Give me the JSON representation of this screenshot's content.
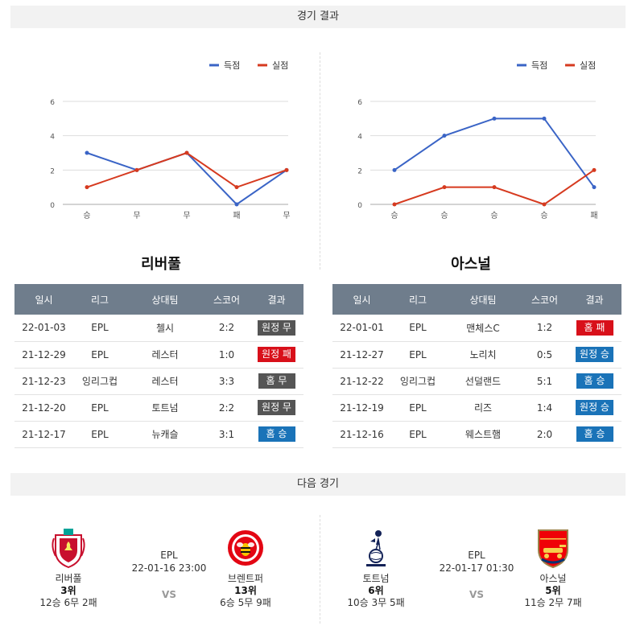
{
  "sections": {
    "results_title": "경기 결과",
    "next_title": "다음 경기"
  },
  "legend": {
    "scored": "득점",
    "conceded": "실점"
  },
  "colors": {
    "scored": "#3a64c6",
    "conceded": "#d63a1f",
    "win": "#1a73b8",
    "loss": "#d8101a",
    "draw": "#555555",
    "header": "#6f7d8c"
  },
  "chart_data": [
    {
      "type": "line",
      "categories": [
        "승",
        "무",
        "무",
        "패",
        "무"
      ],
      "series": [
        {
          "name": "득점",
          "values": [
            3,
            2,
            3,
            0,
            2
          ]
        },
        {
          "name": "실점",
          "values": [
            1,
            2,
            3,
            1,
            2
          ]
        }
      ],
      "yticks": [
        0,
        2,
        4,
        6
      ],
      "ylim": [
        0,
        6
      ],
      "grid": true,
      "legend": "top-right"
    },
    {
      "type": "line",
      "categories": [
        "승",
        "승",
        "승",
        "승",
        "패"
      ],
      "series": [
        {
          "name": "득점",
          "values": [
            2,
            4,
            5,
            5,
            1
          ]
        },
        {
          "name": "실점",
          "values": [
            0,
            1,
            1,
            0,
            2
          ]
        }
      ],
      "yticks": [
        0,
        2,
        4,
        6
      ],
      "ylim": [
        0,
        6
      ],
      "grid": true,
      "legend": "top-right"
    }
  ],
  "table_headers": [
    "일시",
    "리그",
    "상대팀",
    "스코어",
    "결과"
  ],
  "teams": [
    {
      "name": "리버풀",
      "rows": [
        {
          "date": "22-01-03",
          "league": "EPL",
          "opponent": "첼시",
          "score": "2:2",
          "result": "원정 무",
          "kind": "draw"
        },
        {
          "date": "21-12-29",
          "league": "EPL",
          "opponent": "레스터",
          "score": "1:0",
          "result": "원정 패",
          "kind": "loss"
        },
        {
          "date": "21-12-23",
          "league": "잉리그컵",
          "opponent": "레스터",
          "score": "3:3",
          "result": "홈 무",
          "kind": "draw"
        },
        {
          "date": "21-12-20",
          "league": "EPL",
          "opponent": "토트넘",
          "score": "2:2",
          "result": "원정 무",
          "kind": "draw"
        },
        {
          "date": "21-12-17",
          "league": "EPL",
          "opponent": "뉴캐슬",
          "score": "3:1",
          "result": "홈 승",
          "kind": "win"
        }
      ]
    },
    {
      "name": "아스널",
      "rows": [
        {
          "date": "22-01-01",
          "league": "EPL",
          "opponent": "맨체스C",
          "score": "1:2",
          "result": "홈 패",
          "kind": "loss"
        },
        {
          "date": "21-12-27",
          "league": "EPL",
          "opponent": "노리치",
          "score": "0:5",
          "result": "원정 승",
          "kind": "win"
        },
        {
          "date": "21-12-22",
          "league": "잉리그컵",
          "opponent": "선덜랜드",
          "score": "5:1",
          "result": "홈 승",
          "kind": "win"
        },
        {
          "date": "21-12-19",
          "league": "EPL",
          "opponent": "리즈",
          "score": "1:4",
          "result": "원정 승",
          "kind": "win"
        },
        {
          "date": "21-12-16",
          "league": "EPL",
          "opponent": "웨스트햄",
          "score": "2:0",
          "result": "홈 승",
          "kind": "win"
        }
      ]
    }
  ],
  "next_matches": [
    {
      "league": "EPL",
      "datetime": "22-01-16 23:00",
      "vs": "VS",
      "home": {
        "name": "리버풀",
        "rank": "3위",
        "record": "12승 6무 2패",
        "logo": "liverpool-crest-icon"
      },
      "away": {
        "name": "브렌트퍼",
        "rank": "13위",
        "record": "6승 5무 9패",
        "logo": "brentford-crest-icon"
      }
    },
    {
      "league": "EPL",
      "datetime": "22-01-17 01:30",
      "vs": "VS",
      "home": {
        "name": "토트넘",
        "rank": "6위",
        "record": "10승 3무 5패",
        "logo": "tottenham-crest-icon"
      },
      "away": {
        "name": "아스널",
        "rank": "5위",
        "record": "11승 2무 7패",
        "logo": "arsenal-crest-icon"
      }
    }
  ]
}
